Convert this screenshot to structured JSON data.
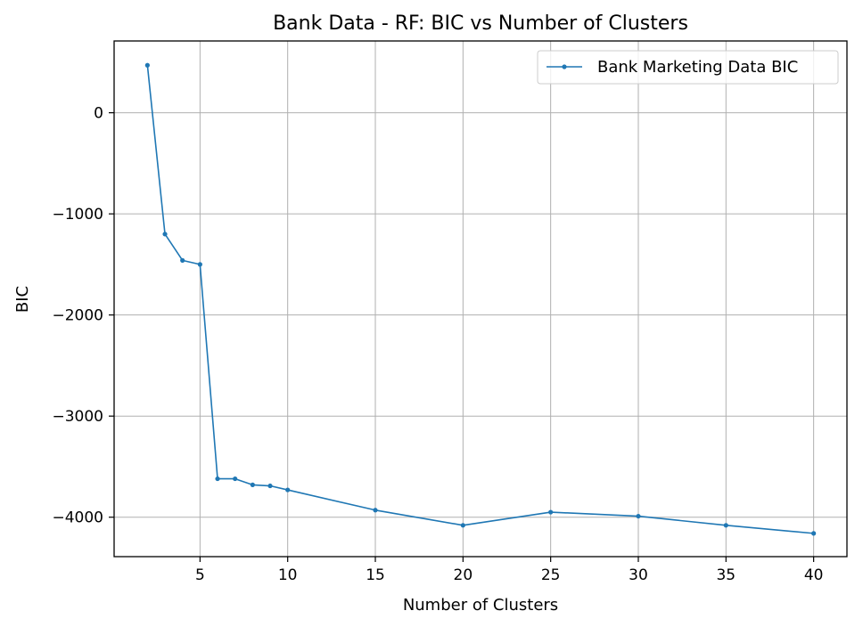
{
  "chart_data": {
    "type": "line",
    "title": "Bank Data - RF: BIC vs Number of Clusters",
    "xlabel": "Number of Clusters",
    "ylabel": "BIC",
    "xlim": [
      0.1,
      41.9
    ],
    "ylim": [
      -4390,
      710
    ],
    "grid": true,
    "legend_position": "top-right",
    "x_ticks": [
      5,
      10,
      15,
      20,
      25,
      30,
      35,
      40
    ],
    "x_tick_labels": [
      "5",
      "10",
      "15",
      "20",
      "25",
      "30",
      "35",
      "40"
    ],
    "y_ticks": [
      0,
      -1000,
      -2000,
      -3000,
      -4000
    ],
    "y_tick_labels": [
      "0",
      "−1000",
      "−2000",
      "−3000",
      "−4000"
    ],
    "series": [
      {
        "name": "Bank Marketing Data BIC",
        "color": "#1f77b4",
        "x": [
          2,
          3,
          4,
          5,
          6,
          7,
          8,
          9,
          10,
          15,
          20,
          25,
          30,
          35,
          40
        ],
        "y": [
          470,
          -1200,
          -1460,
          -1500,
          -3620,
          -3620,
          -3680,
          -3690,
          -3730,
          -3930,
          -4080,
          -3950,
          -3990,
          -4080,
          -4160
        ]
      }
    ]
  }
}
